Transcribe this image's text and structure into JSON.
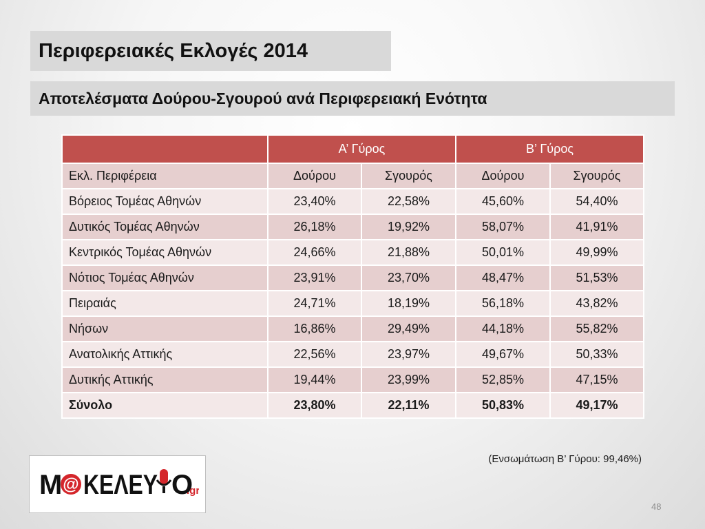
{
  "title": "Περιφερειακές Εκλογές 2014",
  "subtitle": "Αποτελέσματα Δούρου-Σγουρού ανά Περιφερειακή Ενότητα",
  "table": {
    "group_headers": [
      "",
      "Α’ Γύρος",
      "Β’ Γύρος"
    ],
    "columns": [
      "Εκλ. Περιφέρεια",
      "Δούρου",
      "Σγουρός",
      "Δούρου",
      "Σγουρός"
    ],
    "rows": [
      [
        "Βόρειος Τομέας Αθηνών",
        "23,40%",
        "22,58%",
        "45,60%",
        "54,40%"
      ],
      [
        "Δυτικός Τομέας Αθηνών",
        "26,18%",
        "19,92%",
        "58,07%",
        "41,91%"
      ],
      [
        "Κεντρικός Τομέας Αθηνών",
        "24,66%",
        "21,88%",
        "50,01%",
        "49,99%"
      ],
      [
        "Νότιος Τομέας Αθηνών",
        "23,91%",
        "23,70%",
        "48,47%",
        "51,53%"
      ],
      [
        "Πειραιάς",
        "24,71%",
        "18,19%",
        "56,18%",
        "43,82%"
      ],
      [
        "Νήσων",
        "16,86%",
        "29,49%",
        "44,18%",
        "55,82%"
      ],
      [
        "Ανατολικής Αττικής",
        "22,56%",
        "23,97%",
        "49,67%",
        "50,33%"
      ],
      [
        "Δυτικής Αττικής",
        "19,44%",
        "23,99%",
        "52,85%",
        "47,15%"
      ]
    ],
    "total": [
      "Σύνολο",
      "23,80%",
      "22,11%",
      "50,83%",
      "49,17%"
    ]
  },
  "footnote": "(Ενσωμάτωση Β’ Γύρου: 99,46%)",
  "logo": {
    "text_before": "M",
    "at_sign": "@",
    "text_middle": "KEΛEY",
    "text_after": "O",
    "suffix": ".gr",
    "icon": "microphone-icon"
  },
  "page_number": "48",
  "colors": {
    "header_red": "#c0504d",
    "row_dark": "#e6cfcf",
    "row_light": "#f3e8e8",
    "title_bg": "#d9d9d9",
    "logo_red": "#d4262b"
  }
}
